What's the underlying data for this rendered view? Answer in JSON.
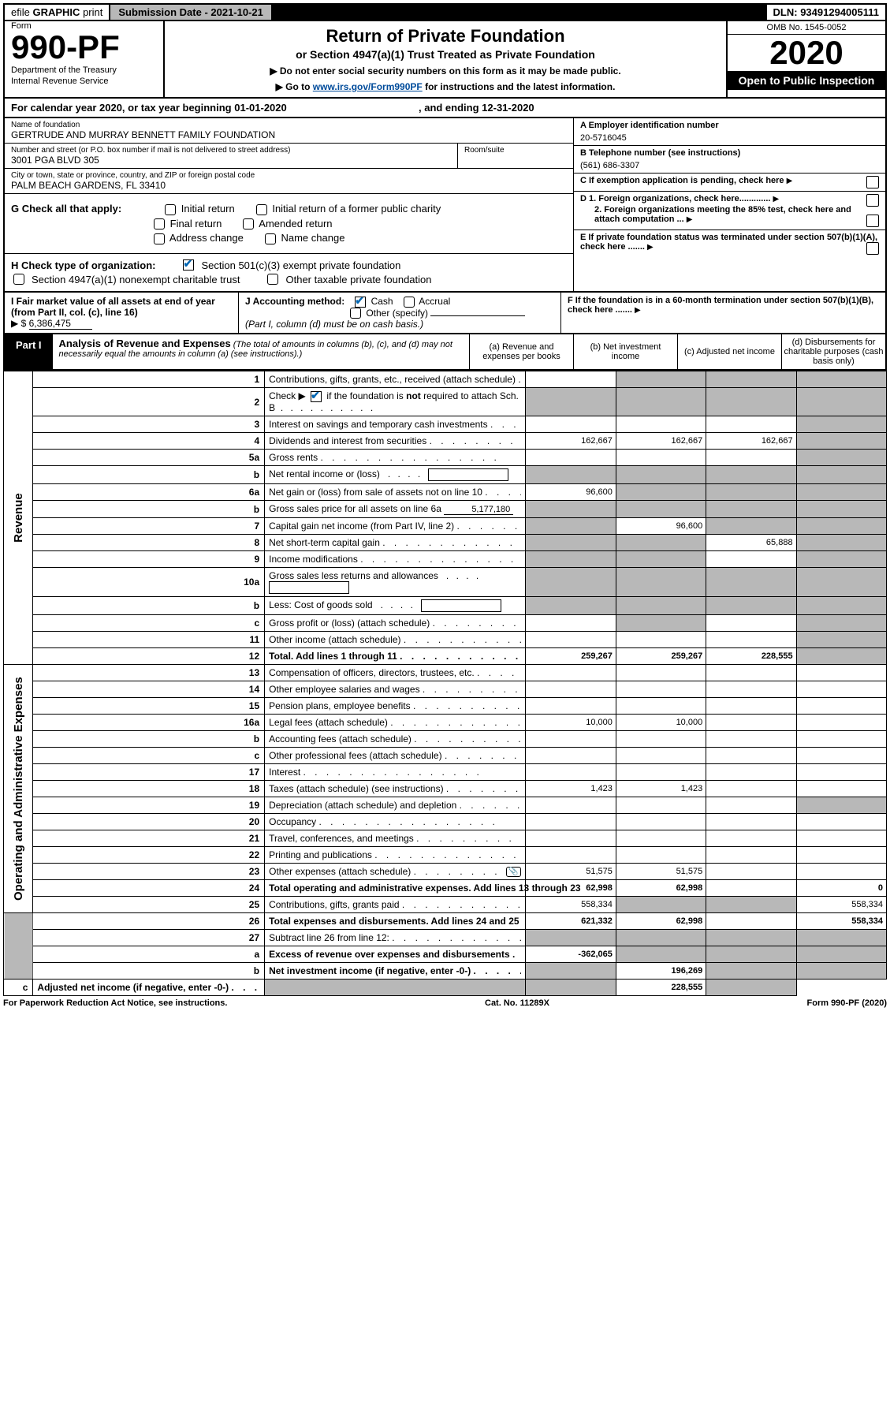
{
  "topbar": {
    "efile_prefix": "efile",
    "efile_bold": "GRAPHIC",
    "efile_suffix": "print",
    "submission": "Submission Date - 2021-10-21",
    "dln": "DLN: 93491294005111"
  },
  "header": {
    "form_label": "Form",
    "form_number": "990-PF",
    "dept1": "Department of the Treasury",
    "dept2": "Internal Revenue Service",
    "title1": "Return of Private Foundation",
    "title2": "or Section 4947(a)(1) Trust Treated as Private Foundation",
    "note1": "▶ Do not enter social security numbers on this form as it may be made public.",
    "note2_pre": "▶ Go to ",
    "note2_link": "www.irs.gov/Form990PF",
    "note2_post": " for instructions and the latest information.",
    "omb": "OMB No. 1545-0052",
    "year": "2020",
    "open": "Open to Public Inspection"
  },
  "calrow": {
    "pre": "For calendar year 2020, or tax year beginning ",
    "begin": "01-01-2020",
    "mid": " , and ending ",
    "end": "12-31-2020"
  },
  "id": {
    "name_lbl": "Name of foundation",
    "name_val": "GERTRUDE AND MURRAY BENNETT FAMILY FOUNDATION",
    "addr_lbl": "Number and street (or P.O. box number if mail is not delivered to street address)",
    "addr_val": "3001 PGA BLVD 305",
    "room_lbl": "Room/suite",
    "city_lbl": "City or town, state or province, country, and ZIP or foreign postal code",
    "city_val": "PALM BEACH GARDENS, FL  33410",
    "ein_lbl": "A Employer identification number",
    "ein_val": "20-5716045",
    "tel_lbl": "B Telephone number (see instructions)",
    "tel_val": "(561) 686-3307",
    "C": "C If exemption application is pending, check here",
    "D1": "D 1. Foreign organizations, check here.............",
    "D2": "2. Foreign organizations meeting the 85% test, check here and attach computation ...",
    "E": "E  If private foundation status was terminated under section 507(b)(1)(A), check here .......",
    "F": "F  If the foundation is in a 60-month termination under section 507(b)(1)(B), check here .......",
    "G_lbl": "G Check all that apply:",
    "G_opts": [
      "Initial return",
      "Initial return of a former public charity",
      "Final return",
      "Amended return",
      "Address change",
      "Name change"
    ],
    "H_lbl": "H Check type of organization:",
    "H1": "Section 501(c)(3) exempt private foundation",
    "H2": "Section 4947(a)(1) nonexempt charitable trust",
    "H3": "Other taxable private foundation",
    "I_lbl": "I Fair market value of all assets at end of year (from Part II, col. (c), line 16)",
    "I_prefix": "▶ $",
    "I_val": "6,386,475",
    "J_lbl": "J Accounting method:",
    "J_cash": "Cash",
    "J_accrual": "Accrual",
    "J_other": "Other (specify)",
    "J_note": "(Part I, column (d) must be on cash basis.)"
  },
  "part1": {
    "tab": "Part I",
    "title": "Analysis of Revenue and Expenses",
    "subtitle": "(The total of amounts in columns (b), (c), and (d) may not necessarily equal the amounts in column (a) (see instructions).)",
    "col_a": "(a) Revenue and expenses per books",
    "col_b": "(b) Net investment income",
    "col_c": "(c) Adjusted net income",
    "col_d": "(d) Disbursements for charitable purposes (cash basis only)"
  },
  "revenue_label": "Revenue",
  "expenses_label": "Operating and Administrative Expenses",
  "rows": [
    {
      "no": "1",
      "desc": "Contributions, gifts, grants, etc., received (attach schedule)",
      "a": "",
      "b": "",
      "c": "",
      "d": "",
      "shade": [
        "b",
        "c",
        "d"
      ]
    },
    {
      "no": "2",
      "desc": "Check ▶ ☑ if the foundation is not required to attach Sch. B",
      "type": "check",
      "a": "",
      "b": "",
      "c": "",
      "d": "",
      "shade": [
        "a",
        "b",
        "c",
        "d"
      ]
    },
    {
      "no": "3",
      "desc": "Interest on savings and temporary cash investments",
      "a": "",
      "b": "",
      "c": "",
      "d": "",
      "shade": [
        "d"
      ]
    },
    {
      "no": "4",
      "desc": "Dividends and interest from securities",
      "a": "162,667",
      "b": "162,667",
      "c": "162,667",
      "d": "",
      "shade": [
        "d"
      ]
    },
    {
      "no": "5a",
      "desc": "Gross rents",
      "a": "",
      "b": "",
      "c": "",
      "d": "",
      "shade": [
        "d"
      ]
    },
    {
      "no": "b",
      "desc": "Net rental income or (loss)",
      "type": "box",
      "a": "",
      "b": "",
      "c": "",
      "d": "",
      "shade": [
        "a",
        "b",
        "c",
        "d"
      ]
    },
    {
      "no": "6a",
      "desc": "Net gain or (loss) from sale of assets not on line 10",
      "a": "96,600",
      "b": "",
      "c": "",
      "d": "",
      "shade": [
        "b",
        "c",
        "d"
      ]
    },
    {
      "no": "b",
      "desc": "Gross sales price for all assets on line 6a",
      "type": "under",
      "under": "5,177,180",
      "a": "",
      "b": "",
      "c": "",
      "d": "",
      "shade": [
        "a",
        "b",
        "c",
        "d"
      ]
    },
    {
      "no": "7",
      "desc": "Capital gain net income (from Part IV, line 2)",
      "a": "",
      "b": "96,600",
      "c": "",
      "d": "",
      "shade": [
        "a",
        "c",
        "d"
      ]
    },
    {
      "no": "8",
      "desc": "Net short-term capital gain",
      "a": "",
      "b": "",
      "c": "65,888",
      "d": "",
      "shade": [
        "a",
        "b",
        "d"
      ]
    },
    {
      "no": "9",
      "desc": "Income modifications",
      "a": "",
      "b": "",
      "c": "",
      "d": "",
      "shade": [
        "a",
        "b",
        "d"
      ]
    },
    {
      "no": "10a",
      "desc": "Gross sales less returns and allowances",
      "type": "box",
      "a": "",
      "b": "",
      "c": "",
      "d": "",
      "shade": [
        "a",
        "b",
        "c",
        "d"
      ]
    },
    {
      "no": "b",
      "desc": "Less: Cost of goods sold",
      "type": "box",
      "a": "",
      "b": "",
      "c": "",
      "d": "",
      "shade": [
        "a",
        "b",
        "c",
        "d"
      ]
    },
    {
      "no": "c",
      "desc": "Gross profit or (loss) (attach schedule)",
      "a": "",
      "b": "",
      "c": "",
      "d": "",
      "shade": [
        "b",
        "d"
      ]
    },
    {
      "no": "11",
      "desc": "Other income (attach schedule)",
      "a": "",
      "b": "",
      "c": "",
      "d": "",
      "shade": [
        "d"
      ]
    },
    {
      "no": "12",
      "desc": "Total. Add lines 1 through 11",
      "bold": true,
      "a": "259,267",
      "b": "259,267",
      "c": "228,555",
      "d": "",
      "shade": [
        "d"
      ]
    },
    {
      "no": "13",
      "desc": "Compensation of officers, directors, trustees, etc.",
      "a": "",
      "b": "",
      "c": "",
      "d": ""
    },
    {
      "no": "14",
      "desc": "Other employee salaries and wages",
      "a": "",
      "b": "",
      "c": "",
      "d": ""
    },
    {
      "no": "15",
      "desc": "Pension plans, employee benefits",
      "a": "",
      "b": "",
      "c": "",
      "d": ""
    },
    {
      "no": "16a",
      "desc": "Legal fees (attach schedule)",
      "a": "10,000",
      "b": "10,000",
      "c": "",
      "d": ""
    },
    {
      "no": "b",
      "desc": "Accounting fees (attach schedule)",
      "a": "",
      "b": "",
      "c": "",
      "d": ""
    },
    {
      "no": "c",
      "desc": "Other professional fees (attach schedule)",
      "a": "",
      "b": "",
      "c": "",
      "d": ""
    },
    {
      "no": "17",
      "desc": "Interest",
      "a": "",
      "b": "",
      "c": "",
      "d": ""
    },
    {
      "no": "18",
      "desc": "Taxes (attach schedule) (see instructions)",
      "a": "1,423",
      "b": "1,423",
      "c": "",
      "d": ""
    },
    {
      "no": "19",
      "desc": "Depreciation (attach schedule) and depletion",
      "a": "",
      "b": "",
      "c": "",
      "d": "",
      "shade": [
        "d"
      ]
    },
    {
      "no": "20",
      "desc": "Occupancy",
      "a": "",
      "b": "",
      "c": "",
      "d": ""
    },
    {
      "no": "21",
      "desc": "Travel, conferences, and meetings",
      "a": "",
      "b": "",
      "c": "",
      "d": ""
    },
    {
      "no": "22",
      "desc": "Printing and publications",
      "a": "",
      "b": "",
      "c": "",
      "d": ""
    },
    {
      "no": "23",
      "desc": "Other expenses (attach schedule)",
      "icon": true,
      "a": "51,575",
      "b": "51,575",
      "c": "",
      "d": ""
    },
    {
      "no": "24",
      "desc": "Total operating and administrative expenses. Add lines 13 through 23",
      "bold": true,
      "a": "62,998",
      "b": "62,998",
      "c": "",
      "d": "0"
    },
    {
      "no": "25",
      "desc": "Contributions, gifts, grants paid",
      "a": "558,334",
      "b": "",
      "c": "",
      "d": "558,334",
      "shade": [
        "b",
        "c"
      ]
    },
    {
      "no": "26",
      "desc": "Total expenses and disbursements. Add lines 24 and 25",
      "bold": true,
      "a": "621,332",
      "b": "62,998",
      "c": "",
      "d": "558,334"
    },
    {
      "no": "27",
      "desc": "Subtract line 26 from line 12:",
      "a": "",
      "b": "",
      "c": "",
      "d": "",
      "shade": [
        "a",
        "b",
        "c",
        "d"
      ]
    },
    {
      "no": "a",
      "desc": "Excess of revenue over expenses and disbursements",
      "bold": true,
      "a": "-362,065",
      "b": "",
      "c": "",
      "d": "",
      "shade": [
        "b",
        "c",
        "d"
      ]
    },
    {
      "no": "b",
      "desc": "Net investment income (if negative, enter -0-)",
      "bold": true,
      "a": "",
      "b": "196,269",
      "c": "",
      "d": "",
      "shade": [
        "a",
        "c",
        "d"
      ]
    },
    {
      "no": "c",
      "desc": "Adjusted net income (if negative, enter -0-)",
      "bold": true,
      "a": "",
      "b": "",
      "c": "228,555",
      "d": "",
      "shade": [
        "a",
        "b",
        "d"
      ]
    }
  ],
  "footer": {
    "left": "For Paperwork Reduction Act Notice, see instructions.",
    "mid": "Cat. No. 11289X",
    "right_pre": "Form ",
    "right_b": "990-PF",
    "right_post": " (2020)"
  }
}
